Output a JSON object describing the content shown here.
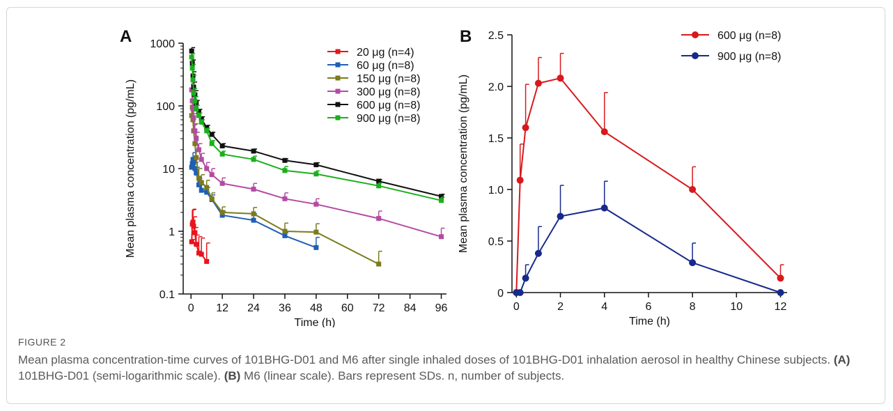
{
  "figure": {
    "label": "FIGURE 2",
    "caption_main": "Mean plasma concentration-time curves of 101BHG-D01 and M6 after single inhaled doses of 101BHG-D01 inhalation aerosol in healthy Chinese subjects. ",
    "caption_a_tag": "(A)",
    "caption_a_text": " 101BHG-D01 (semi-logarithmic scale). ",
    "caption_b_tag": "(B)",
    "caption_b_text": " M6 (linear scale). Bars represent SDs. n, number of subjects."
  },
  "chart_data": [
    {
      "panel": "A",
      "type": "line",
      "xlabel": "Time (h)",
      "ylabel": "Mean plasma concentration (pg/mL)",
      "yscale": "log",
      "xlim": [
        -3,
        98
      ],
      "ylim": [
        0.1,
        1000
      ],
      "xticks": [
        0,
        12,
        24,
        36,
        48,
        60,
        72,
        84,
        96
      ],
      "yticks": [
        0.1,
        1,
        10,
        100,
        1000
      ],
      "ytick_labels": [
        "0.1",
        "1",
        "10",
        "100",
        "1000"
      ],
      "legend_position": "top-right",
      "series": [
        {
          "name": "20 μg (n=4)",
          "color": "#e8141c",
          "marker": "square",
          "x": [
            0.25,
            0.5,
            0.75,
            1,
            1.5,
            2,
            3,
            4,
            6
          ],
          "y": [
            0.68,
            1.3,
            1.4,
            1.2,
            0.95,
            0.62,
            0.45,
            0.43,
            0.33
          ],
          "sd": [
            0.06,
            0.9,
            0.85,
            0.5,
            0.2,
            0.25,
            0.37,
            0.35,
            0.32
          ]
        },
        {
          "name": "60 μg (n=8)",
          "color": "#1f5fb4",
          "marker": "square",
          "x": [
            0.25,
            0.5,
            0.75,
            1,
            1.5,
            2,
            3,
            4,
            6,
            8,
            12,
            24,
            36,
            48
          ],
          "y": [
            10.5,
            12,
            14,
            12.5,
            10,
            8.5,
            5.5,
            4.5,
            4.2,
            3.2,
            1.8,
            1.5,
            0.85,
            0.55
          ],
          "sd": [
            2,
            3,
            4,
            3,
            2.5,
            2,
            1.5,
            1.0,
            0.8,
            0.6,
            0.3,
            0.4,
            0.1,
            0.25
          ]
        },
        {
          "name": "150 μg (n=8)",
          "color": "#7b7b1e",
          "marker": "square",
          "x": [
            0.25,
            0.5,
            0.75,
            1,
            1.5,
            2,
            3,
            4,
            6,
            8,
            12,
            24,
            36,
            48,
            72
          ],
          "y": [
            70,
            95,
            60,
            40,
            25,
            15,
            7,
            6,
            5,
            3.3,
            2.0,
            1.9,
            1.0,
            0.97,
            0.3
          ],
          "sd": [
            20,
            20,
            15,
            10,
            8,
            5,
            3,
            2,
            1.5,
            0.8,
            0.45,
            0.5,
            0.35,
            0.35,
            0.18
          ]
        },
        {
          "name": "300 μg (n=8)",
          "color": "#b34ba3",
          "marker": "square",
          "x": [
            0.25,
            0.5,
            0.75,
            1,
            1.5,
            2,
            3,
            4,
            6,
            8,
            12,
            24,
            36,
            48,
            72,
            96
          ],
          "y": [
            180,
            120,
            90,
            65,
            40,
            30,
            20,
            14,
            10,
            8,
            5.8,
            4.7,
            3.3,
            2.7,
            1.6,
            0.82
          ],
          "sd": [
            50,
            35,
            25,
            18,
            12,
            8,
            5,
            3.5,
            2.5,
            2,
            1.3,
            1.1,
            0.8,
            0.6,
            0.5,
            0.3
          ]
        },
        {
          "name": "600 μg (n=8)",
          "color": "#111111",
          "marker": "square",
          "x": [
            0.25,
            0.5,
            0.75,
            1,
            1.5,
            2,
            3,
            4,
            6,
            8,
            12,
            24,
            36,
            48,
            72,
            96
          ],
          "y": [
            750,
            480,
            300,
            200,
            150,
            110,
            80,
            62,
            45,
            35,
            23,
            19,
            13.5,
            11.5,
            6.3,
            3.6
          ],
          "sd": [
            100,
            60,
            50,
            40,
            25,
            12,
            8,
            5,
            4,
            3,
            2,
            1.5,
            0.8,
            0.9,
            0.4,
            0.3
          ]
        },
        {
          "name": "900 μg (n=8)",
          "color": "#1bb01b",
          "marker": "square",
          "x": [
            0.25,
            0.5,
            0.75,
            1,
            1.5,
            2,
            3,
            4,
            6,
            8,
            12,
            24,
            36,
            48,
            72,
            96
          ],
          "y": [
            600,
            400,
            260,
            160,
            120,
            90,
            70,
            55,
            40,
            25,
            17,
            14,
            9.3,
            8.2,
            5.3,
            3.1
          ],
          "sd": [
            80,
            60,
            50,
            30,
            20,
            12,
            7,
            5,
            4,
            3,
            2,
            1.8,
            1.5,
            1.0,
            0.6,
            0.4
          ]
        }
      ]
    },
    {
      "panel": "B",
      "type": "line",
      "xlabel": "Time (h)",
      "ylabel": "Mean plasma concentration (pg/mL)",
      "yscale": "linear",
      "xlim": [
        -0.2,
        12.3
      ],
      "ylim": [
        0,
        2.5
      ],
      "xticks": [
        0,
        2,
        4,
        6,
        8,
        10,
        12
      ],
      "yticks": [
        0,
        0.5,
        1.0,
        1.5,
        2.0,
        2.5
      ],
      "ytick_labels": [
        "0",
        "0.5",
        "1.0",
        "1.5",
        "2.0",
        "2.5"
      ],
      "legend_position": "top-right",
      "series": [
        {
          "name": "600 μg (n=8)",
          "color": "#d7191c",
          "marker": "circle",
          "x": [
            0,
            0.17,
            0.42,
            1,
            2,
            4,
            8,
            12
          ],
          "y": [
            0,
            1.09,
            1.6,
            2.03,
            2.08,
            1.56,
            1.0,
            0.14
          ],
          "sd": [
            0,
            0.35,
            0.42,
            0.25,
            0.24,
            0.38,
            0.22,
            0.13
          ]
        },
        {
          "name": "900 μg (n=8)",
          "color": "#16298c",
          "marker": "circle",
          "x": [
            0,
            0.17,
            0.42,
            1,
            2,
            4,
            8,
            12
          ],
          "y": [
            0,
            0,
            0.14,
            0.38,
            0.74,
            0.82,
            0.29,
            0
          ],
          "sd": [
            0,
            0,
            0.13,
            0.26,
            0.3,
            0.26,
            0.19,
            0
          ]
        }
      ]
    }
  ]
}
